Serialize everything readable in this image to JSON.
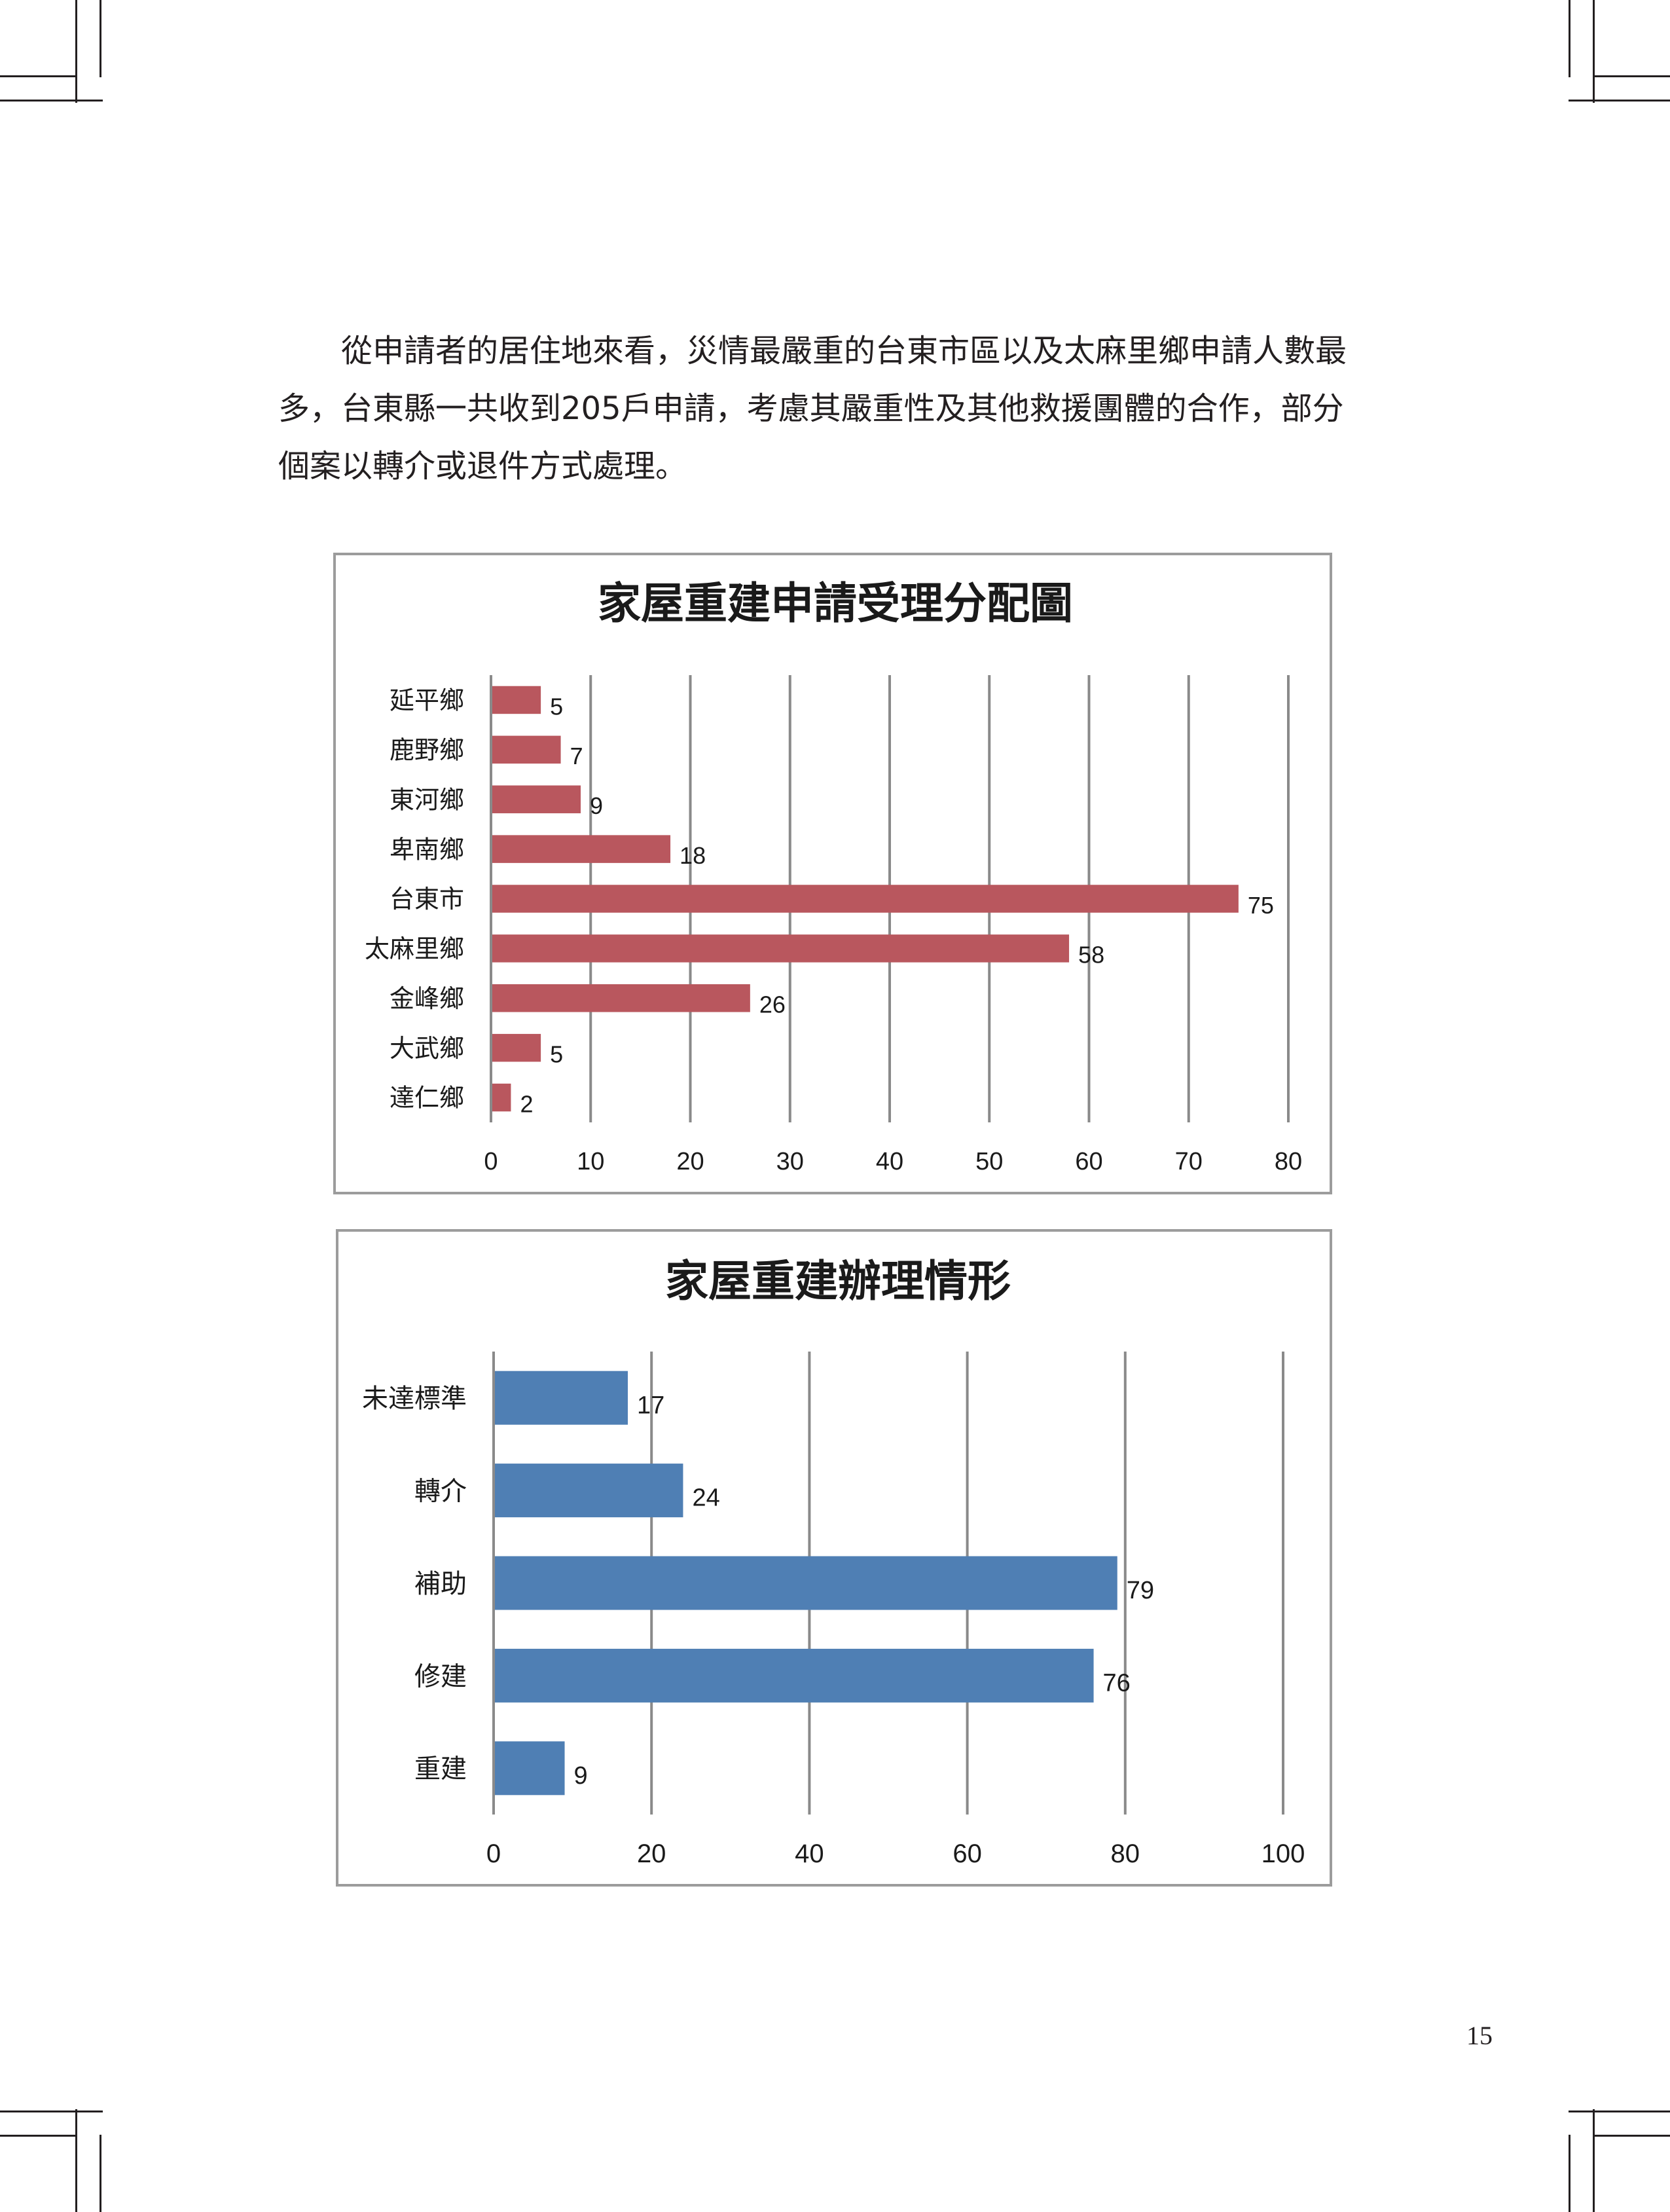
{
  "paragraph": {
    "lines": [
      "從申請者的居住地來看，災情最嚴重的台東市區以及太麻里鄉申請人數最",
      "多，台東縣一共收到205戶申請，考慮其嚴重性及其他救援團體的合作，部分",
      "個案以轉介或退件方式處理。"
    ]
  },
  "page_number": "15",
  "chart_data": [
    {
      "type": "bar",
      "orientation": "horizontal",
      "title": "家屋重建申請受理分配圖",
      "categories": [
        "延平鄉",
        "鹿野鄉",
        "東河鄉",
        "卑南鄉",
        "台東市",
        "太麻里鄉",
        "金峰鄉",
        "大武鄉",
        "達仁鄉"
      ],
      "values": [
        5,
        7,
        9,
        18,
        75,
        58,
        26,
        5,
        2
      ],
      "xlim": [
        0,
        80
      ],
      "xticks": [
        0,
        10,
        20,
        30,
        40,
        50,
        60,
        70,
        80
      ],
      "xlabel": "",
      "ylabel": "",
      "grid": true,
      "legend": "none",
      "color": "#b9575e"
    },
    {
      "type": "bar",
      "orientation": "horizontal",
      "title": "家屋重建辦理情形",
      "categories": [
        "未達標準",
        "轉介",
        "補助",
        "修建",
        "重建"
      ],
      "values": [
        17,
        24,
        79,
        76,
        9
      ],
      "xlim": [
        0,
        100
      ],
      "xticks": [
        0,
        20,
        40,
        60,
        80,
        100
      ],
      "xlabel": "",
      "ylabel": "",
      "grid": true,
      "legend": "none",
      "color": "#4f7fb4"
    }
  ]
}
